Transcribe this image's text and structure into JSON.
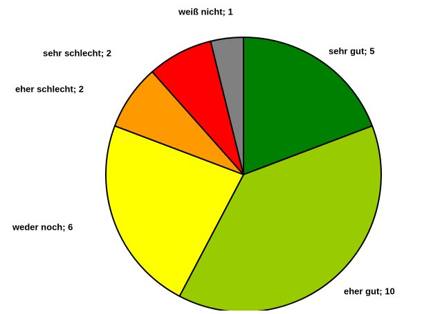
{
  "chart_data": {
    "type": "pie",
    "values": [
      5,
      10,
      6,
      2,
      2,
      1
    ],
    "value_labels": [
      "sehr gut; 5",
      "eher gut; 10",
      "weder noch; 6",
      "eher schlecht; 2",
      "sehr schlecht; 2",
      "weiß nicht; 1"
    ],
    "colors": [
      "#008000",
      "#99cc00",
      "#ffff00",
      "#ff9900",
      "#ff0000",
      "#808080"
    ],
    "start": "top",
    "direction": "clockwise"
  }
}
